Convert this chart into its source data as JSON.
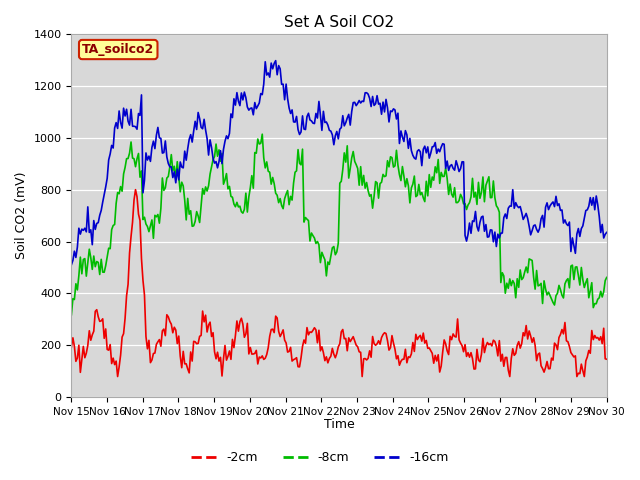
{
  "title": "Set A Soil CO2",
  "ylabel": "Soil CO2 (mV)",
  "xlabel": "Time",
  "n_pts": 360,
  "xlim_days": [
    15,
    30
  ],
  "ylim": [
    0,
    1400
  ],
  "yticks": [
    0,
    200,
    400,
    600,
    800,
    1000,
    1200,
    1400
  ],
  "xtick_labels": [
    "Nov 15",
    "Nov 16",
    "Nov 17",
    "Nov 18",
    "Nov 19",
    "Nov 20",
    "Nov 21",
    "Nov 22",
    "Nov 23",
    "Nov 24",
    "Nov 25",
    "Nov 26",
    "Nov 27",
    "Nov 28",
    "Nov 29",
    "Nov 30"
  ],
  "bg_color": "#e0e0e0",
  "fig_bg": "#ffffff",
  "plot_bg": "#d8d8d8",
  "legend_box_label": "TA_soilco2",
  "legend_box_bg": "#ffff99",
  "legend_box_border": "#cc2200",
  "series": [
    {
      "label": "-2cm",
      "color": "#ee0000",
      "lw": 1.2
    },
    {
      "label": "-8cm",
      "color": "#00bb00",
      "lw": 1.2
    },
    {
      "label": "-16cm",
      "color": "#0000cc",
      "lw": 1.2
    }
  ]
}
